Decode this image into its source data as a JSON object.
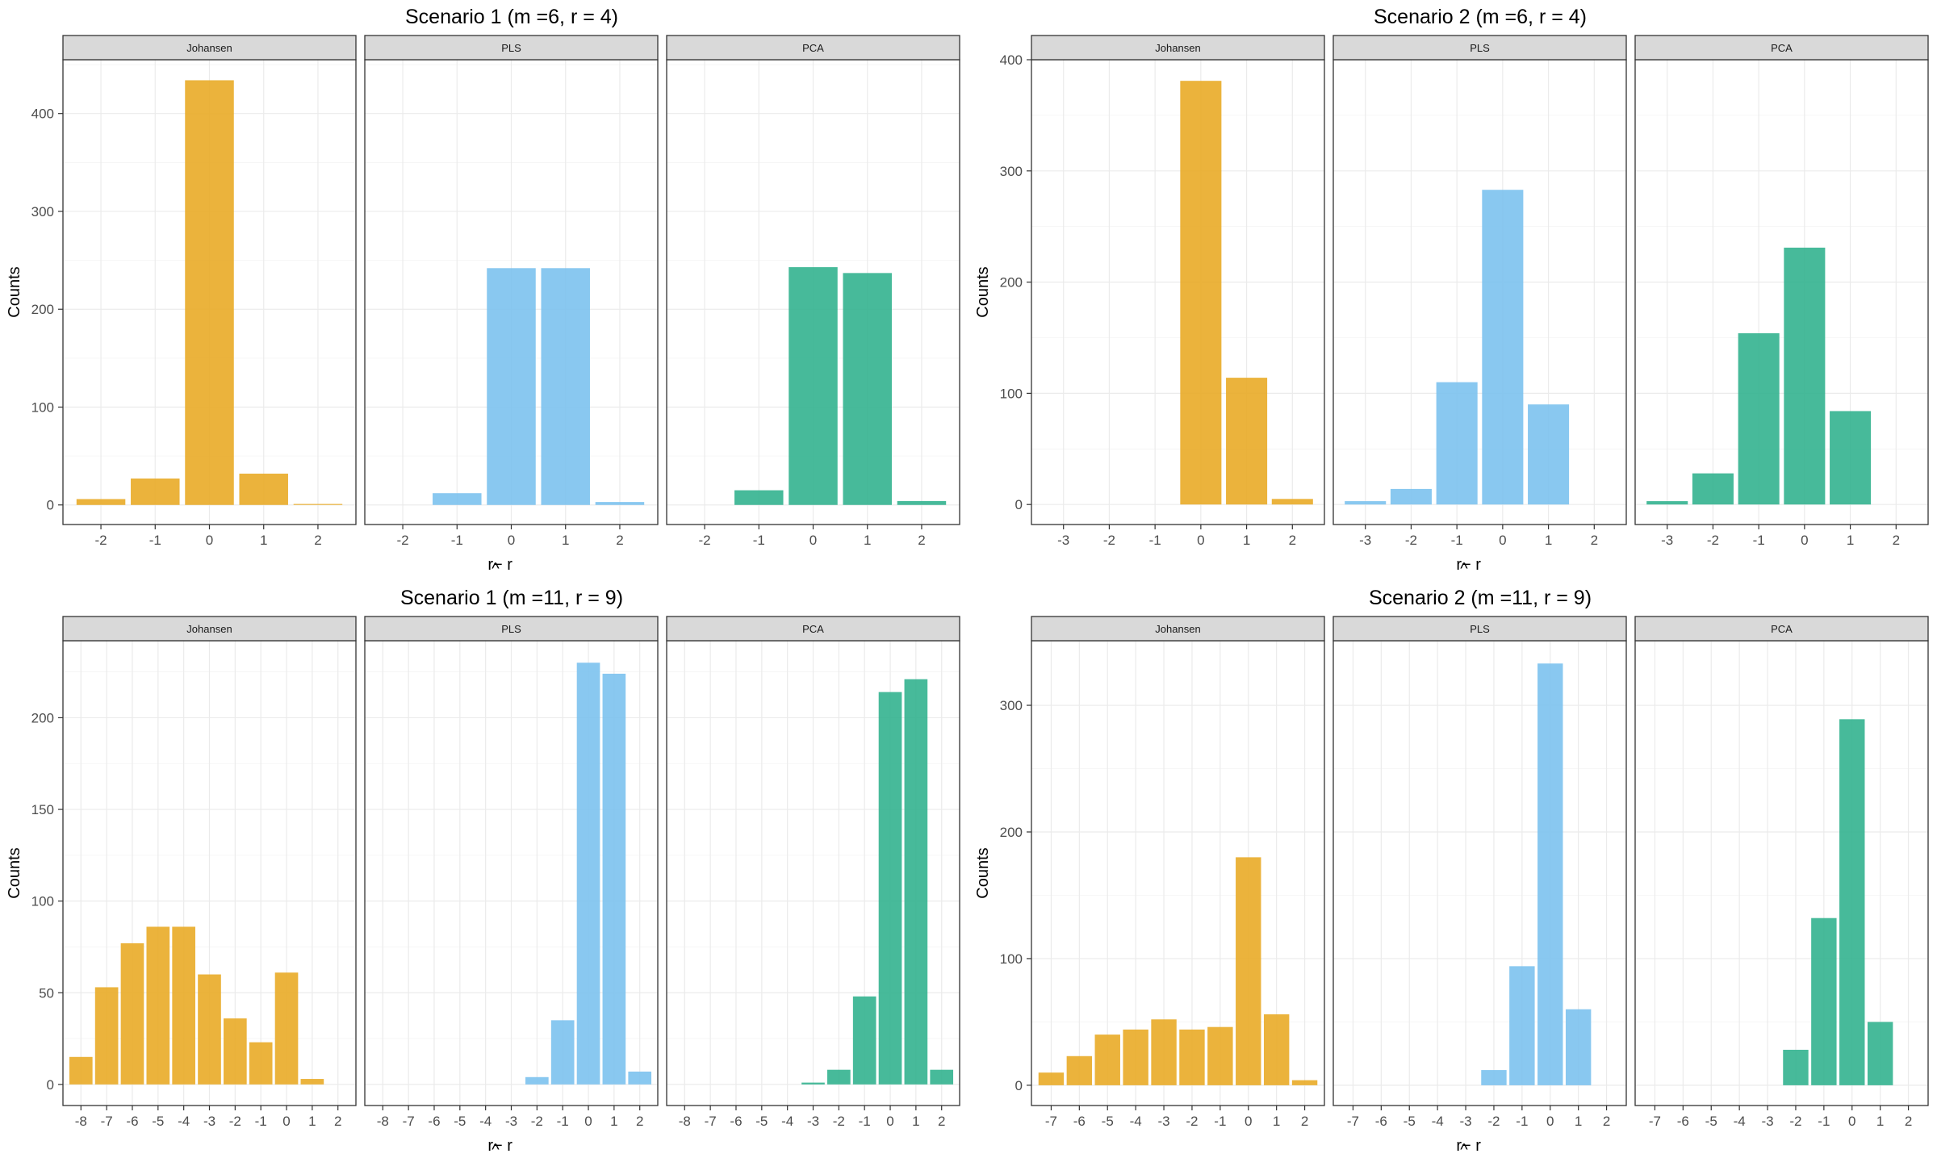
{
  "colors": {
    "Johansen": "#E9AB27",
    "PLS": "#7CC2EE",
    "PCA": "#33B38F"
  },
  "chart_data": [
    {
      "type": "bar",
      "title": "Scenario 1 (m =6, r = 4)",
      "xlabel_base": "r",
      "xlabel_rest": " − r",
      "xlabel_hat": "^",
      "ylabel": "Counts",
      "xlim": [
        -2.7,
        2.7
      ],
      "ylim": [
        -20,
        455
      ],
      "yticks": [
        0,
        100,
        200,
        300,
        400
      ],
      "ytick_labels": [
        "0",
        "100",
        "200",
        "300",
        "400"
      ],
      "xticks": [
        -2,
        -1,
        0,
        1,
        2
      ],
      "xtick_labels": [
        "-2",
        "-1",
        "0",
        "1",
        "2"
      ],
      "series": [
        {
          "name": "Johansen",
          "x": [
            -2,
            -1,
            0,
            1,
            2
          ],
          "values": [
            6,
            27,
            434,
            32,
            1
          ]
        },
        {
          "name": "PLS",
          "x": [
            -1,
            0,
            1,
            2
          ],
          "values": [
            12,
            242,
            242,
            3
          ]
        },
        {
          "name": "PCA",
          "x": [
            -1,
            0,
            1,
            2
          ],
          "values": [
            15,
            243,
            237,
            4
          ]
        }
      ]
    },
    {
      "type": "bar",
      "title": "Scenario 2 (m =6, r = 4)",
      "xlabel_base": "r",
      "xlabel_rest": " − r",
      "xlabel_hat": "^",
      "ylabel": "Counts",
      "xlim": [
        -3.7,
        2.7
      ],
      "ylim": [
        -18,
        400
      ],
      "yticks": [
        0,
        100,
        200,
        300,
        400
      ],
      "ytick_labels": [
        "0",
        "100",
        "200",
        "300",
        "400"
      ],
      "xticks": [
        -3,
        -2,
        -1,
        0,
        1,
        2
      ],
      "xtick_labels": [
        "-3",
        "-2",
        "-1",
        "0",
        "1",
        "2"
      ],
      "series": [
        {
          "name": "Johansen",
          "x": [
            0,
            1,
            2
          ],
          "values": [
            381,
            114,
            5
          ]
        },
        {
          "name": "PLS",
          "x": [
            -3,
            -2,
            -1,
            0,
            1
          ],
          "values": [
            3,
            14,
            110,
            283,
            90
          ]
        },
        {
          "name": "PCA",
          "x": [
            -3,
            -2,
            -1,
            0,
            1
          ],
          "values": [
            3,
            28,
            154,
            231,
            84
          ]
        }
      ]
    },
    {
      "type": "bar",
      "title": "Scenario 1 (m =11, r = 9)",
      "xlabel_base": "r",
      "xlabel_rest": " − r",
      "xlabel_hat": "^",
      "ylabel": "Counts",
      "xlim": [
        -8.7,
        2.7
      ],
      "ylim": [
        -11.5,
        242
      ],
      "yticks": [
        0,
        50,
        100,
        150,
        200
      ],
      "ytick_labels": [
        "0",
        "50",
        "100",
        "150",
        "200"
      ],
      "xticks": [
        -8,
        -7,
        -6,
        -5,
        -4,
        -3,
        -2,
        -1,
        0,
        1,
        2
      ],
      "xtick_labels": [
        "-8",
        "-7",
        "-6",
        "-5",
        "-4",
        "-3",
        "-2",
        "-1",
        "0",
        "1",
        "2"
      ],
      "series": [
        {
          "name": "Johansen",
          "x": [
            -8,
            -7,
            -6,
            -5,
            -4,
            -3,
            -2,
            -1,
            0,
            1
          ],
          "values": [
            15,
            53,
            77,
            86,
            86,
            60,
            36,
            23,
            61,
            3
          ]
        },
        {
          "name": "PLS",
          "x": [
            -2,
            -1,
            0,
            1,
            2
          ],
          "values": [
            4,
            35,
            230,
            224,
            7
          ]
        },
        {
          "name": "PCA",
          "x": [
            -3,
            -2,
            -1,
            0,
            1,
            2
          ],
          "values": [
            1,
            8,
            48,
            214,
            221,
            8
          ]
        }
      ]
    },
    {
      "type": "bar",
      "title": "Scenario 2 (m =11, r = 9)",
      "xlabel_base": "r",
      "xlabel_rest": " − r",
      "xlabel_hat": "^",
      "ylabel": "Counts",
      "xlim": [
        -7.7,
        2.7
      ],
      "ylim": [
        -16,
        351
      ],
      "yticks": [
        0,
        100,
        200,
        300
      ],
      "ytick_labels": [
        "0",
        "100",
        "200",
        "300"
      ],
      "xticks": [
        -7,
        -6,
        -5,
        -4,
        -3,
        -2,
        -1,
        0,
        1,
        2
      ],
      "xtick_labels": [
        "-7",
        "-6",
        "-5",
        "-4",
        "-3",
        "-2",
        "-1",
        "0",
        "1",
        "2"
      ],
      "series": [
        {
          "name": "Johansen",
          "x": [
            -7,
            -6,
            -5,
            -4,
            -3,
            -2,
            -1,
            0,
            1,
            2
          ],
          "values": [
            10,
            23,
            40,
            44,
            52,
            44,
            46,
            180,
            56,
            4
          ]
        },
        {
          "name": "PLS",
          "x": [
            -2,
            -1,
            0,
            1
          ],
          "values": [
            12,
            94,
            333,
            60
          ]
        },
        {
          "name": "PCA",
          "x": [
            -2,
            -1,
            0,
            1
          ],
          "values": [
            28,
            132,
            289,
            50
          ]
        }
      ]
    }
  ]
}
